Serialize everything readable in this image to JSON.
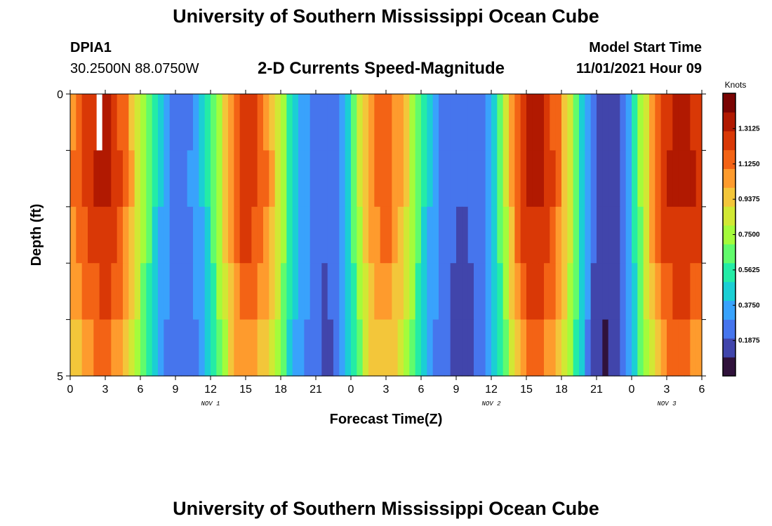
{
  "header": {
    "title": "University of Southern Mississippi Ocean Cube",
    "station_id": "DPIA1",
    "coordinates": "30.2500N  88.0750W",
    "subtitle": "2-D Currents Speed-Magnitude",
    "model_start_label": "Model Start Time",
    "model_start_value": "11/01/2021 Hour 09"
  },
  "footer": {
    "title": "University of Southern Mississippi Ocean Cube"
  },
  "chart_data": {
    "type": "heatmap",
    "title": "2-D Currents Speed-Magnitude",
    "xlabel": "Forecast Time(Z)",
    "ylabel": "Depth (ft)",
    "x_ticks": [
      "0",
      "3",
      "6",
      "9",
      "12",
      "15",
      "18",
      "21",
      "0",
      "3",
      "6",
      "9",
      "12",
      "15",
      "18",
      "21",
      "0",
      "3",
      "6"
    ],
    "x_range_hours": [
      0,
      54
    ],
    "y_ticks": [
      "0",
      "5"
    ],
    "y_range_ft": [
      0,
      5
    ],
    "date_labels": [
      {
        "text": "NOV 1",
        "hour": 12
      },
      {
        "text": "NOV 2",
        "hour": 36
      },
      {
        "text": "NOV 3",
        "hour": 51
      }
    ],
    "depth_layers": 5,
    "hourly_surface_speed_knots": [
      1.05,
      1.2,
      1.28,
      1.32,
      1.25,
      1.05,
      0.8,
      0.55,
      0.35,
      0.25,
      0.28,
      0.35,
      0.55,
      0.85,
      1.15,
      1.25,
      1.2,
      1.05,
      0.8,
      0.5,
      0.35,
      0.25,
      0.2,
      0.3,
      0.55,
      0.9,
      1.1,
      1.15,
      1.05,
      0.85,
      0.55,
      0.35,
      0.25,
      0.2,
      0.2,
      0.25,
      0.4,
      0.7,
      1.1,
      1.3,
      1.32,
      1.25,
      1.05,
      0.75,
      0.4,
      0.15,
      0.1,
      0.2,
      0.45,
      0.8,
      1.1,
      1.28,
      1.32,
      1.3,
      1.2
    ],
    "layer_scale": [
      1.0,
      1.02,
      0.98,
      0.93,
      0.86,
      0.72
    ],
    "missing_cell": {
      "hour": 2.5,
      "layer": 0
    },
    "colorbar": {
      "label": "Knots",
      "ticks": [
        "1.3125",
        "1.1250",
        "0.9375",
        "0.7500",
        "0.5625",
        "0.3750",
        "0.1875"
      ],
      "range": [
        0,
        1.5
      ]
    },
    "colors": [
      "#30123b",
      "#4145ab",
      "#4675ed",
      "#39a2fc",
      "#1bcfd4",
      "#24eca6",
      "#61fc6c",
      "#a4fc3b",
      "#d1e834",
      "#f3c63a",
      "#fe9b2d",
      "#f36315",
      "#d93806",
      "#b11901",
      "#7a0403"
    ]
  }
}
